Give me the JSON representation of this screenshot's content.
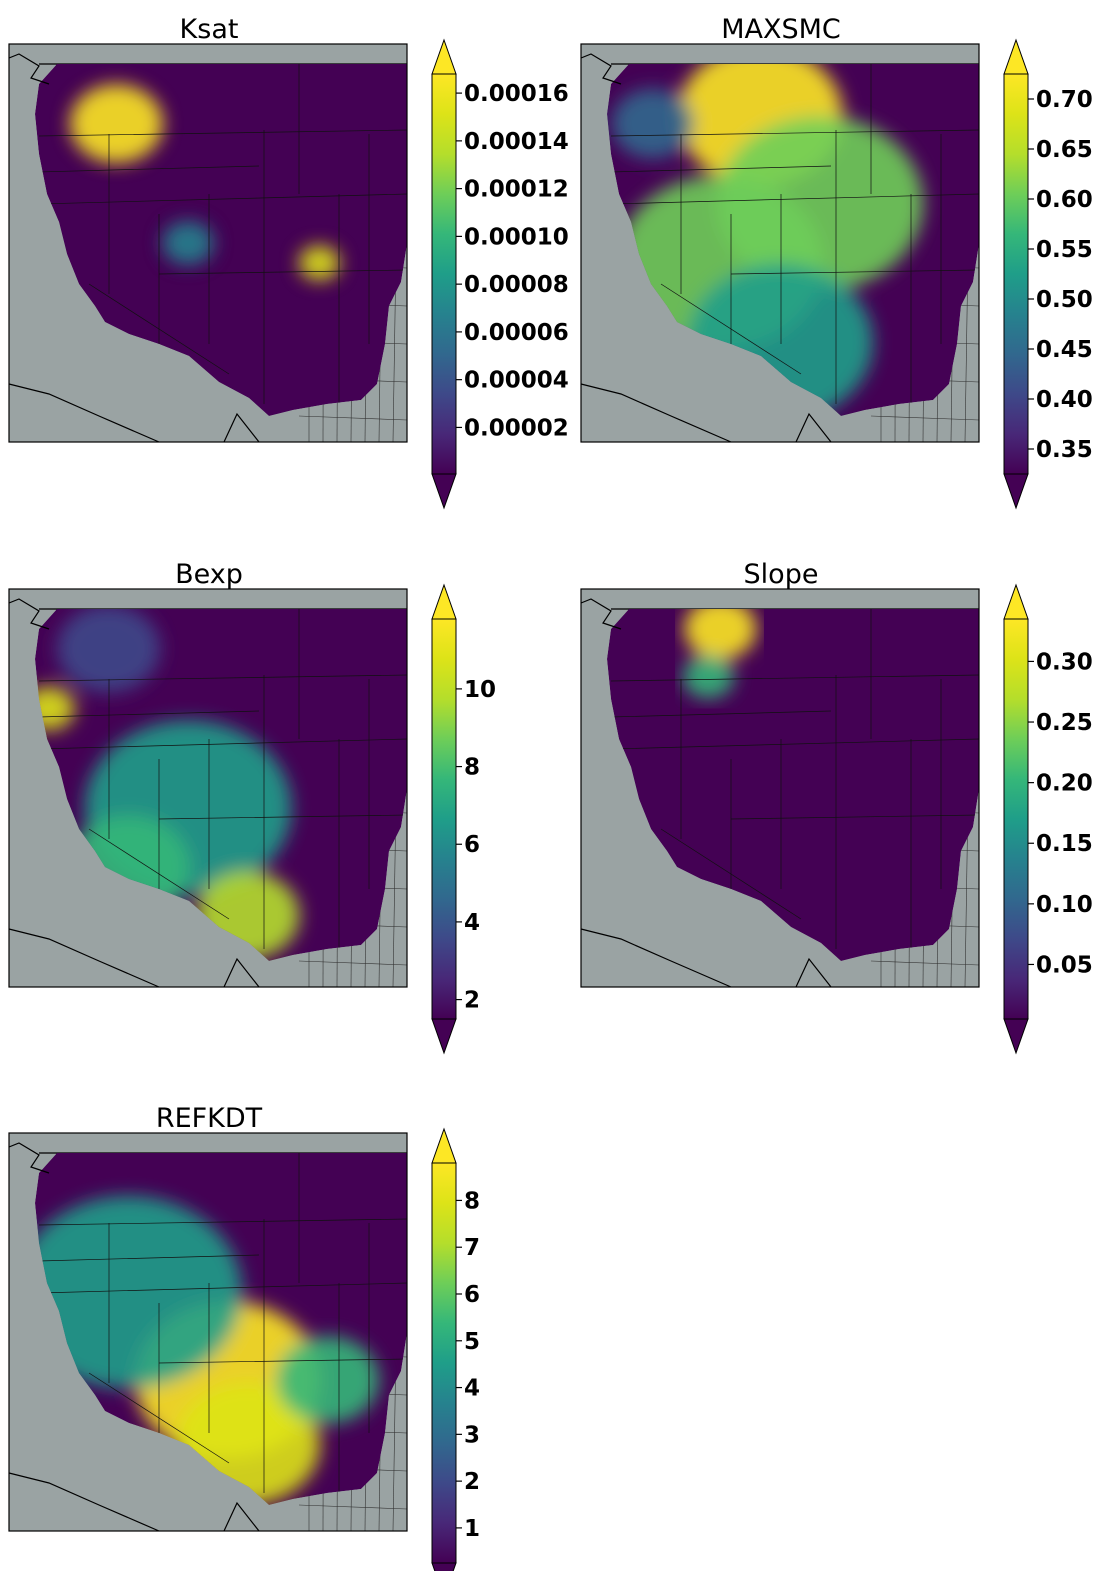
{
  "panels": [
    {
      "id": "ksat",
      "title": "Ksat",
      "colorbar": {
        "ticks": [
          "0.00002",
          "0.00004",
          "0.00006",
          "0.00008",
          "0.00010",
          "0.00012",
          "0.00014",
          "0.00016"
        ],
        "values": [
          2e-05,
          4e-05,
          6e-05,
          8e-05,
          0.0001,
          0.00012,
          0.00014,
          0.00016
        ],
        "min": 5e-07,
        "max": 0.000168,
        "extend": "both"
      },
      "hotspots": [
        [
          0.27,
          0.2,
          0.09,
          0.95
        ],
        [
          0.78,
          0.55,
          0.04,
          0.85
        ],
        [
          0.45,
          0.5,
          0.05,
          0.35
        ]
      ]
    },
    {
      "id": "maxsmc",
      "title": "MAXSMC",
      "colorbar": {
        "ticks": [
          "0.35",
          "0.40",
          "0.45",
          "0.50",
          "0.55",
          "0.60",
          "0.65",
          "0.70"
        ],
        "values": [
          0.35,
          0.4,
          0.45,
          0.5,
          0.55,
          0.6,
          0.65,
          0.7
        ],
        "min": 0.325,
        "max": 0.725,
        "extend": "both"
      },
      "hotspots": [
        [
          0.45,
          0.18,
          0.16,
          0.95
        ],
        [
          0.35,
          0.55,
          0.2,
          0.65
        ],
        [
          0.6,
          0.4,
          0.2,
          0.7
        ],
        [
          0.18,
          0.2,
          0.08,
          0.25
        ],
        [
          0.5,
          0.75,
          0.18,
          0.45
        ]
      ]
    },
    {
      "id": "bexp",
      "title": "Bexp",
      "colorbar": {
        "ticks": [
          "2",
          "4",
          "6",
          "8",
          "10"
        ],
        "values": [
          2,
          4,
          6,
          8,
          10
        ],
        "min": 1.5,
        "max": 11.8,
        "extend": "both"
      },
      "hotspots": [
        [
          0.1,
          0.3,
          0.05,
          0.85
        ],
        [
          0.45,
          0.55,
          0.2,
          0.5
        ],
        [
          0.6,
          0.82,
          0.1,
          0.75
        ],
        [
          0.3,
          0.7,
          0.12,
          0.55
        ],
        [
          0.25,
          0.15,
          0.1,
          0.2
        ]
      ]
    },
    {
      "id": "slope",
      "title": "Slope",
      "colorbar": {
        "ticks": [
          "0.05",
          "0.10",
          "0.15",
          "0.20",
          "0.25",
          "0.30"
        ],
        "values": [
          0.05,
          0.1,
          0.15,
          0.2,
          0.25,
          0.3
        ],
        "min": 0.005,
        "max": 0.335,
        "extend": "both"
      },
      "hotspots": [
        [
          0.35,
          0.1,
          0.07,
          0.95
        ],
        [
          0.32,
          0.22,
          0.05,
          0.55
        ]
      ]
    },
    {
      "id": "refkdt",
      "title": "REFKDT",
      "colorbar": {
        "ticks": [
          "1",
          "2",
          "3",
          "4",
          "5",
          "6",
          "7",
          "8"
        ],
        "values": [
          1,
          2,
          3,
          4,
          5,
          6,
          7,
          8
        ],
        "min": 0.25,
        "max": 8.8,
        "extend": "both"
      },
      "hotspots": [
        [
          0.55,
          0.62,
          0.18,
          0.95
        ],
        [
          0.6,
          0.78,
          0.14,
          0.85
        ],
        [
          0.3,
          0.4,
          0.22,
          0.45
        ],
        [
          0.8,
          0.62,
          0.1,
          0.6
        ]
      ]
    }
  ]
}
